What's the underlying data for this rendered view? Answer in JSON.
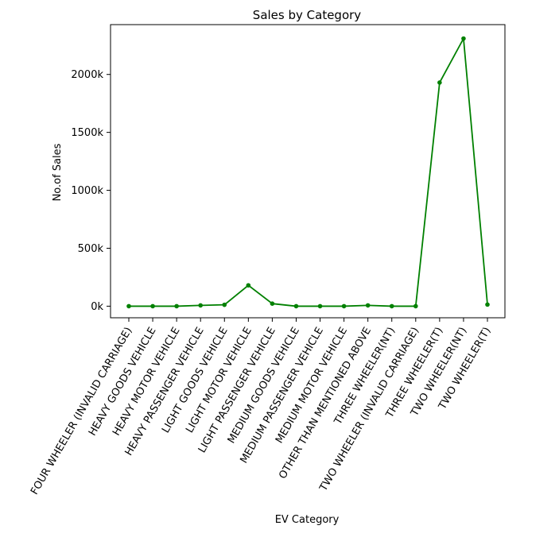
{
  "chart_data": {
    "type": "line",
    "title": "Sales by Category",
    "xlabel": "EV Category",
    "ylabel": "No.of Sales",
    "categories": [
      "FOUR WHEELER (INVALID CARRIAGE)",
      "HEAVY GOODS VEHICLE",
      "HEAVY MOTOR VEHICLE",
      "HEAVY PASSENGER VEHICLE",
      "LIGHT GOODS VEHICLE",
      "LIGHT MOTOR VEHICLE",
      "LIGHT PASSENGER VEHICLE",
      "MEDIUM GOODS VEHICLE",
      "MEDIUM PASSENGER VEHICLE",
      "MEDIUM MOTOR VEHICLE",
      "OTHER THAN MENTIONED ABOVE",
      "THREE WHEELER(NT)",
      "TWO WHEELER (INVALID CARRIAGE)",
      "THREE WHEELER(T)",
      "TWO WHEELER(NT)",
      "TWO WHEELER(T)"
    ],
    "series": [
      {
        "values": [
          0,
          0,
          0,
          7000,
          12000,
          180000,
          22000,
          0,
          0,
          0,
          7000,
          0,
          0,
          1930000,
          2310000,
          14000
        ],
        "color": "#008000"
      }
    ],
    "y_ticks": [
      0,
      500000,
      1000000,
      1500000,
      2000000
    ],
    "y_tick_labels": [
      "0k",
      "500k",
      "1000k",
      "1500k",
      "2000k"
    ],
    "ylim": [
      -100000,
      2430000
    ],
    "grid": false,
    "legend": "none"
  }
}
